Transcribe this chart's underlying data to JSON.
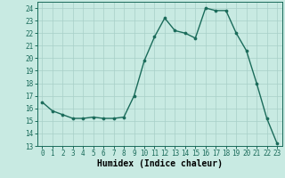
{
  "x": [
    0,
    1,
    2,
    3,
    4,
    5,
    6,
    7,
    8,
    9,
    10,
    11,
    12,
    13,
    14,
    15,
    16,
    17,
    18,
    19,
    20,
    21,
    22,
    23
  ],
  "y": [
    16.5,
    15.8,
    15.5,
    15.2,
    15.2,
    15.3,
    15.2,
    15.2,
    15.3,
    17.0,
    19.8,
    21.7,
    23.2,
    22.2,
    22.0,
    21.6,
    24.0,
    23.8,
    23.8,
    22.0,
    20.6,
    18.0,
    15.2,
    13.2
  ],
  "line_color": "#1a6b5a",
  "marker_color": "#1a6b5a",
  "bg_color": "#c8eae2",
  "grid_color": "#a8cfc8",
  "xlabel": "Humidex (Indice chaleur)",
  "xlabel_fontsize": 7,
  "ylim": [
    13,
    24.5
  ],
  "yticks": [
    13,
    14,
    15,
    16,
    17,
    18,
    19,
    20,
    21,
    22,
    23,
    24
  ],
  "xticks": [
    0,
    1,
    2,
    3,
    4,
    5,
    6,
    7,
    8,
    9,
    10,
    11,
    12,
    13,
    14,
    15,
    16,
    17,
    18,
    19,
    20,
    21,
    22,
    23
  ],
  "tick_fontsize": 5.5,
  "line_width": 1.0,
  "marker_size": 2.2
}
